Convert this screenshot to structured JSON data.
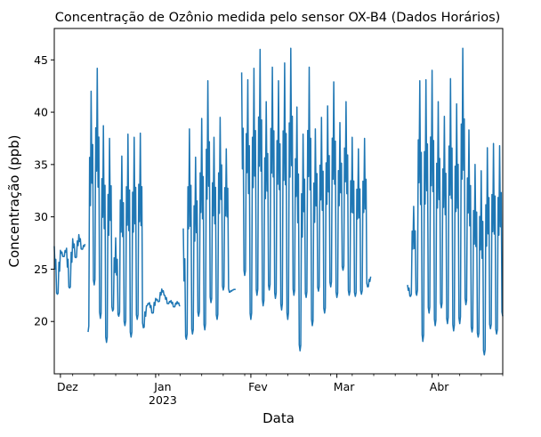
{
  "chart_data": {
    "type": "line",
    "title": "Concentração de Ozônio medida pelo sensor OX-B4 (Dados Horários)",
    "xlabel": "Data",
    "ylabel": "Concentração (ppb)",
    "xlim": [
      "2022-11-29",
      "2023-04-24"
    ],
    "ylim": [
      15,
      48
    ],
    "grid": false,
    "legend": "none",
    "x_ticks": [
      {
        "date": "2022-12-01",
        "label": "Dez",
        "sublabel": ""
      },
      {
        "date": "2023-01-01",
        "label": "Jan",
        "sublabel": "2023"
      },
      {
        "date": "2023-02-01",
        "label": "Fev",
        "sublabel": ""
      },
      {
        "date": "2023-03-01",
        "label": "Mar",
        "sublabel": ""
      },
      {
        "date": "2023-04-01",
        "label": "Abr",
        "sublabel": ""
      }
    ],
    "y_ticks": [
      20,
      25,
      30,
      35,
      40,
      45
    ],
    "series": [
      {
        "color": "#1f77b4",
        "segments": [
          {
            "x": [
              "2022-11-29",
              "2022-11-30",
              "2022-12-01",
              "2022-12-02",
              "2022-12-03",
              "2022-12-04",
              "2022-12-05",
              "2022-12-06",
              "2022-12-07",
              "2022-12-08",
              "2022-12-09"
            ],
            "y": [
              27.2,
              22.6,
              26.8,
              26.2,
              27.0,
              23.2,
              27.9,
              26.1,
              28.3,
              26.9,
              27.4
            ]
          },
          {
            "x": [
              "2022-12-10",
              "2022-12-11",
              "2022-12-12",
              "2022-12-13",
              "2022-12-14",
              "2022-12-15",
              "2022-12-16",
              "2022-12-17",
              "2022-12-18",
              "2022-12-19",
              "2022-12-20",
              "2022-12-21",
              "2022-12-22",
              "2022-12-23",
              "2022-12-24",
              "2022-12-25",
              "2022-12-26",
              "2022-12-27",
              "2022-12-28",
              "2022-12-29",
              "2022-12-30",
              "2022-12-31",
              "2023-01-01",
              "2023-01-02",
              "2023-01-03",
              "2023-01-04",
              "2023-01-05",
              "2023-01-06",
              "2023-01-07",
              "2023-01-08",
              "2023-01-09"
            ],
            "y": [
              19.0,
              42.0,
              23.5,
              44.2,
              20.3,
              38.7,
              18.0,
              37.5,
              21.0,
              28.0,
              20.5,
              35.8,
              19.6,
              37.9,
              18.5,
              37.6,
              20.2,
              38.0,
              19.4,
              21.5,
              21.8,
              20.8,
              22.2,
              21.9,
              23.1,
              22.5,
              21.7,
              22.0,
              21.4,
              21.9,
              21.5
            ]
          },
          {
            "x": [
              "2023-01-10",
              "2023-01-11",
              "2023-01-12",
              "2023-01-13",
              "2023-01-14",
              "2023-01-15",
              "2023-01-16",
              "2023-01-17",
              "2023-01-18",
              "2023-01-19",
              "2023-01-20",
              "2023-01-21",
              "2023-01-22",
              "2023-01-23",
              "2023-01-24",
              "2023-01-25",
              "2023-01-26",
              "2023-01-27"
            ],
            "y": [
              28.9,
              18.3,
              38.4,
              18.8,
              35.7,
              20.5,
              39.4,
              19.2,
              43.0,
              21.8,
              37.6,
              20.2,
              39.5,
              23.0,
              36.5,
              22.8,
              23.0,
              23.1
            ]
          },
          {
            "x": [
              "2023-01-29",
              "2023-01-30",
              "2023-01-31",
              "2023-02-01",
              "2023-02-02",
              "2023-02-03",
              "2023-02-04",
              "2023-02-05",
              "2023-02-06",
              "2023-02-07",
              "2023-02-08",
              "2023-02-09",
              "2023-02-10",
              "2023-02-11",
              "2023-02-12",
              "2023-02-13",
              "2023-02-14",
              "2023-02-15",
              "2023-02-16",
              "2023-02-17",
              "2023-02-18",
              "2023-02-19",
              "2023-02-20",
              "2023-02-21",
              "2023-02-22",
              "2023-02-23",
              "2023-02-24",
              "2023-02-25",
              "2023-02-26",
              "2023-02-27",
              "2023-02-28",
              "2023-03-01",
              "2023-03-02",
              "2023-03-03",
              "2023-03-04",
              "2023-03-05",
              "2023-03-06",
              "2023-03-07",
              "2023-03-08",
              "2023-03-09",
              "2023-03-10",
              "2023-03-11",
              "2023-03-12"
            ],
            "y": [
              43.8,
              24.4,
              43.1,
              20.2,
              44.2,
              22.5,
              46.0,
              21.5,
              41.0,
              23.0,
              44.3,
              22.2,
              43.0,
              21.1,
              44.7,
              20.2,
              46.1,
              22.5,
              40.5,
              17.2,
              37.9,
              22.3,
              44.3,
              19.6,
              38.4,
              22.9,
              39.5,
              20.8,
              40.6,
              23.3,
              42.9,
              22.3,
              39.0,
              24.9,
              41.0,
              22.5,
              37.6,
              22.4,
              36.5,
              22.6,
              37.5,
              23.3,
              24.3
            ]
          },
          {
            "x": [
              "2023-03-24",
              "2023-03-25",
              "2023-03-26",
              "2023-03-27",
              "2023-03-28",
              "2023-03-29",
              "2023-03-30",
              "2023-03-31",
              "2023-04-01",
              "2023-04-02",
              "2023-04-03",
              "2023-04-04",
              "2023-04-05",
              "2023-04-06",
              "2023-04-07",
              "2023-04-08",
              "2023-04-09",
              "2023-04-10",
              "2023-04-11",
              "2023-04-12",
              "2023-04-13",
              "2023-04-14",
              "2023-04-15",
              "2023-04-16",
              "2023-04-17",
              "2023-04-18",
              "2023-04-19",
              "2023-04-20",
              "2023-04-21",
              "2023-04-22",
              "2023-04-23",
              "2023-04-24"
            ],
            "y": [
              23.5,
              22.4,
              31.0,
              22.5,
              43.0,
              18.1,
              43.1,
              20.8,
              44.0,
              19.6,
              41.0,
              21.3,
              39.6,
              19.8,
              43.2,
              19.1,
              40.8,
              19.8,
              46.1,
              21.6,
              38.3,
              19.0,
              35.0,
              18.5,
              34.4,
              16.8,
              36.6,
              19.3,
              37.0,
              18.8,
              36.8,
              20.5
            ]
          }
        ]
      }
    ]
  }
}
